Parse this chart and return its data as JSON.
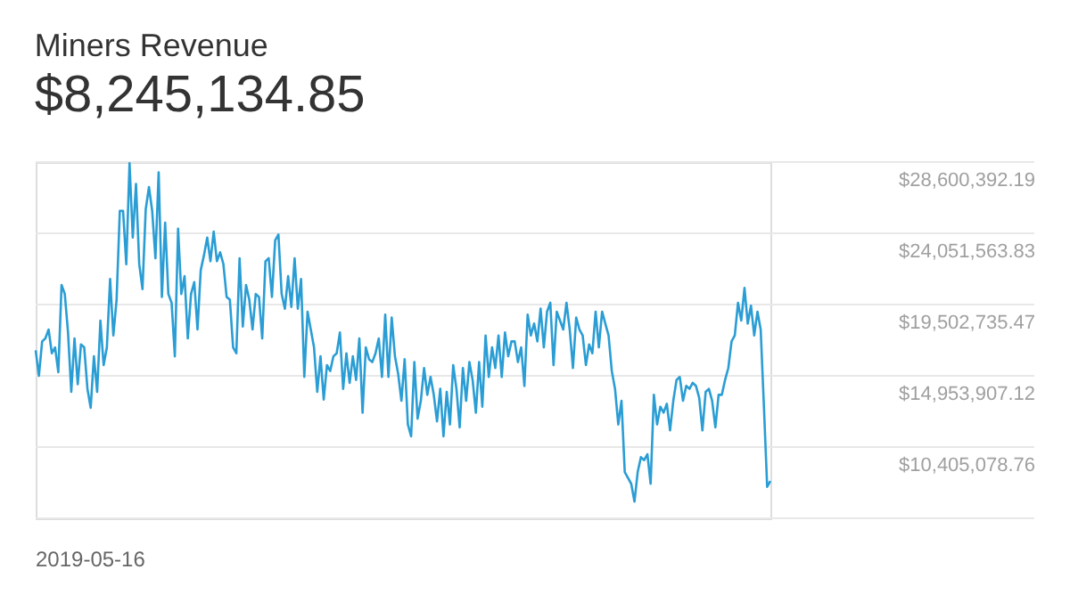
{
  "chart_data": {
    "type": "line",
    "title": "Miners Revenue",
    "subtitle": "$8,245,134.85",
    "annotations": [
      "2019-05-16"
    ],
    "values": [
      16580000,
      14950000,
      17150000,
      17340000,
      17910000,
      16390000,
      16770000,
      15180000,
      20750000,
      20180000,
      17720000,
      13930000,
      17340000,
      14420000,
      16960000,
      16770000,
      14120000,
      12910000,
      16200000,
      13930000,
      18480000,
      15640000,
      16770000,
      21130000,
      17530000,
      19810000,
      25490000,
      25490000,
      22080000,
      28520000,
      23780000,
      27200000,
      22080000,
      20490000,
      25570000,
      27010000,
      25490000,
      22460000,
      27950000,
      19990000,
      24730000,
      20180000,
      19620000,
      16200000,
      24350000,
      20180000,
      21320000,
      17340000,
      20180000,
      20940000,
      17910000,
      21700000,
      22650000,
      23780000,
      22270000,
      24160000,
      22270000,
      22840000,
      22080000,
      19990000,
      19810000,
      16770000,
      16390000,
      22460000,
      18100000,
      20750000,
      19810000,
      17910000,
      20180000,
      19990000,
      17340000,
      22270000,
      22460000,
      19990000,
      23600000,
      23970000,
      20180000,
      19240000,
      21320000,
      19350000,
      22460000,
      19240000,
      21130000,
      14880000,
      19050000,
      17910000,
      16770000,
      13930000,
      16200000,
      13440000,
      15640000,
      15260000,
      16200000,
      16390000,
      17720000,
      14120000,
      16390000,
      14500000,
      16200000,
      14690000,
      17340000,
      12600000,
      16770000,
      16010000,
      15830000,
      16390000,
      17340000,
      14880000,
      18860000,
      14880000,
      18670000,
      16200000,
      15070000,
      13360000,
      16010000,
      11850000,
      11090000,
      15830000,
      12220000,
      13360000,
      15450000,
      13740000,
      14880000,
      13740000,
      12040000,
      14120000,
      11090000,
      13930000,
      11850000,
      15640000,
      14120000,
      11660000,
      15450000,
      13360000,
      15830000,
      14690000,
      12600000,
      15830000,
      12980000,
      17530000,
      14880000,
      16770000,
      15450000,
      17530000,
      14880000,
      17720000,
      16200000,
      17150000,
      17150000,
      15830000,
      16770000,
      14310000,
      18860000,
      17530000,
      18290000,
      17150000,
      19240000,
      16770000,
      19050000,
      19620000,
      15640000,
      19050000,
      18480000,
      17910000,
      19620000,
      17910000,
      15450000,
      18670000,
      17910000,
      17530000,
      15640000,
      16960000,
      16390000,
      19050000,
      16770000,
      19050000,
      18290000,
      17530000,
      15260000,
      14120000,
      11850000,
      13360000,
      8810000,
      8430000,
      8060000,
      6920000,
      8810000,
      9760000,
      9570000,
      9950000,
      8060000,
      13740000,
      11850000,
      12980000,
      12600000,
      13170000,
      11470000,
      13360000,
      14690000,
      14880000,
      13360000,
      14310000,
      14120000,
      14500000,
      14310000,
      13550000,
      11470000,
      13930000,
      14120000,
      13360000,
      11660000,
      13740000,
      13740000,
      14690000,
      15450000,
      17150000,
      17530000,
      19620000,
      18480000,
      20560000,
      18290000,
      19430000,
      17530000,
      19050000,
      17910000,
      12980000,
      7870000,
      8240000
    ],
    "color": "#2a9dd4",
    "ylim": [
      5856250.4,
      28600392.19
    ],
    "yticks": [
      {
        "value": 5856250.4,
        "label": null
      },
      {
        "value": 10405078.76,
        "label": "$10,405,078.76"
      },
      {
        "value": 14953907.12,
        "label": "$14,953,907.12"
      },
      {
        "value": 19502735.47,
        "label": "$19,502,735.47"
      },
      {
        "value": 24051563.83,
        "label": "$24,051,563.83"
      },
      {
        "value": 28600392.19,
        "label": "$28,600,392.19"
      }
    ],
    "grid": "y",
    "tick_labels": "y"
  }
}
